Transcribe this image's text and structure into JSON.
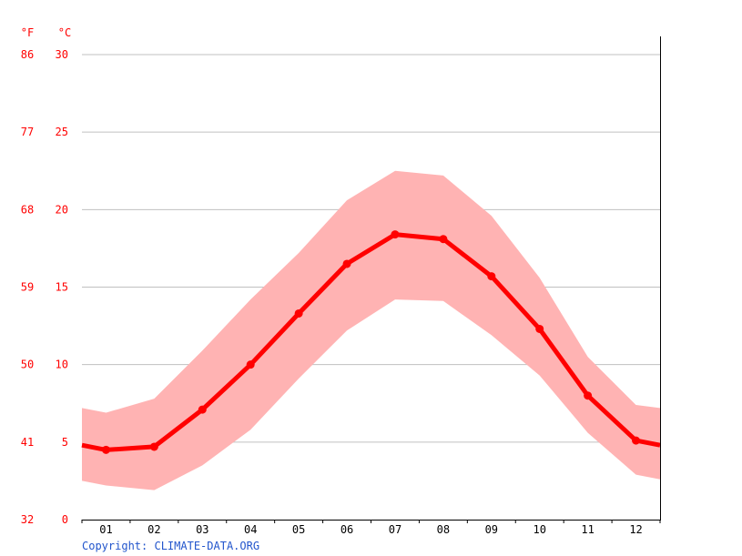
{
  "chart_data": {
    "type": "line",
    "title": "",
    "unit_labels": {
      "fahrenheit": "°F",
      "celsius": "°C"
    },
    "categories": [
      "01",
      "02",
      "03",
      "04",
      "05",
      "06",
      "07",
      "08",
      "09",
      "10",
      "11",
      "12"
    ],
    "y_ticks_c": [
      "0",
      "5",
      "10",
      "15",
      "20",
      "25",
      "30"
    ],
    "y_ticks_f": [
      "32",
      "41",
      "50",
      "59",
      "68",
      "77",
      "86"
    ],
    "ylim": [
      0,
      30
    ],
    "grid": true,
    "series": [
      {
        "role": "mean",
        "values": [
          4.5,
          4.7,
          7.1,
          10.0,
          13.3,
          16.5,
          18.4,
          18.1,
          15.7,
          12.3,
          8.0,
          5.1
        ],
        "color": "#ff0000"
      },
      {
        "role": "max",
        "values": [
          6.9,
          7.8,
          10.9,
          14.2,
          17.2,
          20.6,
          22.5,
          22.2,
          19.6,
          15.6,
          10.5,
          7.4
        ],
        "color": "#ffb3b3"
      },
      {
        "role": "min",
        "values": [
          2.2,
          1.9,
          3.5,
          5.8,
          9.1,
          12.2,
          14.2,
          14.1,
          11.9,
          9.3,
          5.6,
          2.9
        ],
        "color": "#ffb3b3"
      }
    ],
    "edge_values": {
      "mean": [
        4.8,
        4.8
      ],
      "max": [
        7.2,
        7.2
      ],
      "min": [
        2.5,
        2.6
      ]
    }
  },
  "footer": {
    "copyright": "Copyright: CLIMATE-DATA.ORG"
  }
}
